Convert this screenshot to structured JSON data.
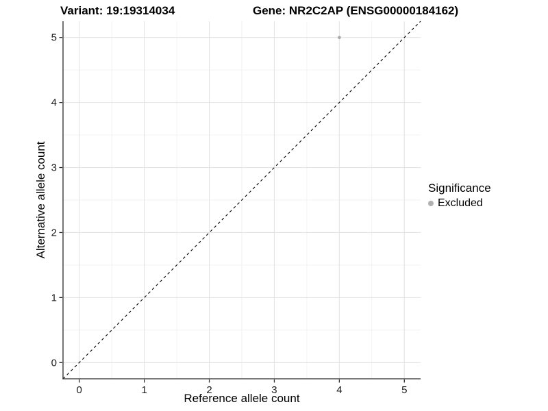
{
  "chart_data": {
    "type": "scatter",
    "title_left": "Variant: 19:19314034",
    "title_right": "Gene: NR2C2AP (ENSG00000184162)",
    "xlabel": "Reference allele count",
    "ylabel": "Alternative allele count",
    "xlim": [
      -0.25,
      5.25
    ],
    "ylim": [
      -0.25,
      5.25
    ],
    "xticks": [
      0,
      1,
      2,
      3,
      4,
      5
    ],
    "yticks": [
      0,
      1,
      2,
      3,
      4,
      5
    ],
    "grid": {
      "major": true,
      "minor": true,
      "major_color": "#e3e3e3",
      "minor_color": "#f1f1f1"
    },
    "identity_line": {
      "from": [
        -0.25,
        -0.25
      ],
      "to": [
        5.25,
        5.25
      ],
      "style": "dashed",
      "color": "#000000"
    },
    "series": [
      {
        "name": "Excluded",
        "color": "#ababab",
        "points": [
          {
            "x": 4,
            "y": 5
          }
        ]
      }
    ],
    "legend": {
      "title": "Significance",
      "position": "right",
      "entries": [
        {
          "label": "Excluded",
          "color": "#b0b0b0",
          "marker": "circle"
        }
      ]
    },
    "colors": {
      "axis": "#2a2a2a",
      "tick_text": "#1a1a1a",
      "background": "#ffffff"
    }
  }
}
